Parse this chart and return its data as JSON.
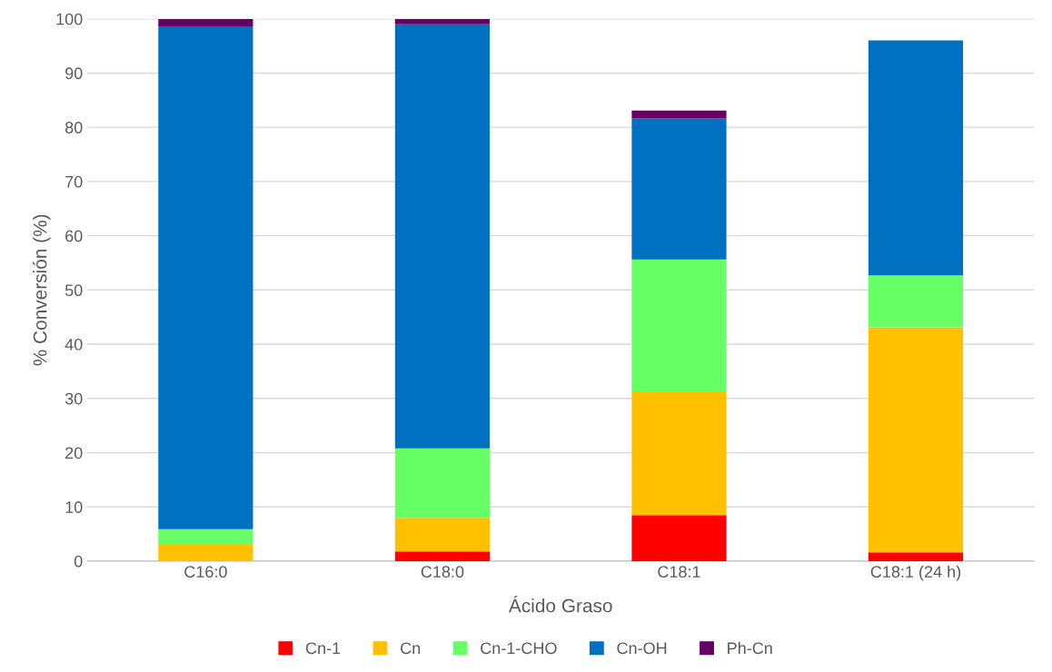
{
  "chart_data": {
    "type": "bar",
    "stacked": true,
    "xlabel": "Ácido Graso",
    "ylabel": "% Conversión (%)",
    "categories": [
      "C16:0",
      "C18:0",
      "C18:1",
      "C18:1 (24 h)"
    ],
    "series": [
      {
        "name": "Cn-1",
        "color": "#ff0000",
        "values": [
          0,
          1.8,
          8.5,
          1.6
        ]
      },
      {
        "name": "Cn",
        "color": "#ffc000",
        "values": [
          3.0,
          6.2,
          22.8,
          41.5
        ]
      },
      {
        "name": "Cn-1-CHO",
        "color": "#66ff66",
        "values": [
          2.9,
          12.8,
          24.3,
          9.6
        ]
      },
      {
        "name": "Cn-OH",
        "color": "#0070c0",
        "values": [
          92.6,
          78.2,
          26.0,
          43.3
        ]
      },
      {
        "name": "Ph-Cn",
        "color": "#660066",
        "values": [
          1.5,
          1.0,
          1.5,
          0
        ]
      }
    ],
    "ylim": [
      0,
      100
    ],
    "yticks": [
      0,
      10,
      20,
      30,
      40,
      50,
      60,
      70,
      80,
      90,
      100
    ],
    "grid": "y",
    "legend": "bottom"
  }
}
